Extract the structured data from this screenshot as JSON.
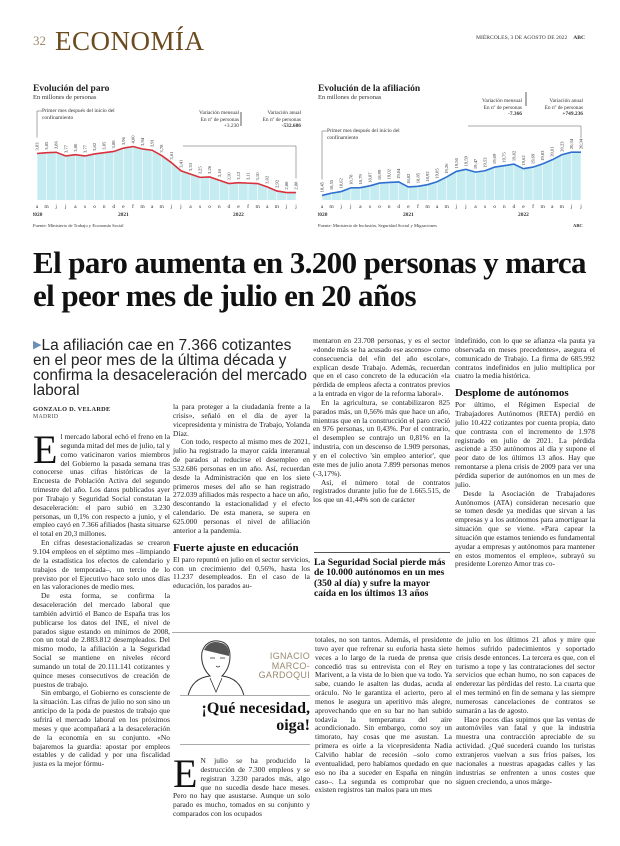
{
  "header": {
    "page_number": "32",
    "section": "ECONOMÍA",
    "date": "MIÉRCOLES, 3 DE AGOSTO DE 2022",
    "brand": "ABC"
  },
  "chart_data": [
    {
      "type": "area",
      "title": "Evolución del paro",
      "subtitle": "En millones de personas",
      "x_ticks": [
        "a",
        "m",
        "j",
        "j",
        "a",
        "s",
        "o",
        "n",
        "d",
        "e",
        "f",
        "m",
        "a",
        "m",
        "j",
        "j",
        "a",
        "s",
        "o",
        "n",
        "d",
        "e",
        "f",
        "m",
        "a",
        "m",
        "j",
        "j"
      ],
      "years": [
        "2020",
        "2021",
        "2022"
      ],
      "values": [
        3.83,
        3.85,
        3.86,
        3.77,
        3.8,
        3.77,
        3.82,
        3.85,
        3.88,
        3.96,
        4.0,
        3.94,
        3.91,
        3.78,
        3.61,
        3.41,
        3.33,
        3.25,
        3.26,
        3.18,
        3.1,
        3.12,
        3.11,
        3.1,
        3.02,
        2.92,
        2.88,
        2.88
      ],
      "labels": [
        "3,83",
        "3,85",
        "3,86",
        "3,77",
        "3,80",
        "3,77",
        "3,82",
        "3,85",
        "3,88",
        "3,96",
        "4,00",
        "3,94",
        "3,91",
        "3,78",
        "3,61",
        "3,41",
        "3,33",
        "3,25",
        "3,26",
        "3,18",
        "3,10",
        "3,12",
        "3,11",
        "3,10",
        "3,02",
        "2,92",
        "2,88",
        "2,88"
      ],
      "ylim": [
        2.7,
        4.45
      ],
      "line_color": "#d8323c",
      "fill_color": "#c4ecf1",
      "annotation": "Primer mes después del inicio del confinamiento",
      "var_monthly": {
        "label": "Variación mensual",
        "unit": "En nº de personas",
        "value": "+3.230"
      },
      "var_annual": {
        "label": "Variación anual",
        "unit": "En nº de personas",
        "value": "-532.686"
      },
      "source": "Fuente: Ministerio de Trabajo y Economía Social"
    },
    {
      "type": "area",
      "title": "Evolución de la afiliación",
      "subtitle": "En millones de personas",
      "x_ticks": [
        "a",
        "m",
        "j",
        "j",
        "a",
        "s",
        "o",
        "n",
        "d",
        "e",
        "f",
        "m",
        "a",
        "m",
        "j",
        "j",
        "a",
        "s",
        "o",
        "n",
        "d",
        "e",
        "f",
        "m",
        "a",
        "m",
        "j",
        "j"
      ],
      "years": [
        "2020",
        "2021",
        "2022"
      ],
      "values": [
        18.45,
        18.55,
        18.62,
        18.78,
        18.79,
        18.87,
        18.99,
        19.02,
        19.04,
        18.82,
        18.85,
        18.92,
        19.05,
        19.26,
        19.5,
        19.59,
        19.47,
        19.53,
        19.69,
        19.75,
        19.82,
        19.62,
        19.69,
        19.83,
        20.01,
        20.23,
        20.34,
        20.34
      ],
      "labels": [
        "18,45",
        "18,55",
        "18,62",
        "18,78",
        "18,79",
        "18,87",
        "18,99",
        "19,02",
        "19,04",
        "18,82",
        "18,85",
        "18,92",
        "19,05",
        "19,26",
        "19,50",
        "19,59",
        "19,47",
        "19,53",
        "19,69",
        "19,75",
        "19,82",
        "19,62",
        "19,69",
        "19,83",
        "20,01",
        "20,23",
        "20,34",
        "20,34"
      ],
      "ylim": [
        18.25,
        21.4
      ],
      "line_color": "#2f6fd0",
      "fill_color": "#c4ecf1",
      "annotation": "Primer mes después del inicio del confinamiento",
      "var_monthly": {
        "label": "Variación mensual",
        "unit": "En nº de personas",
        "value": "-7.366"
      },
      "var_annual": {
        "label": "Variación anual",
        "unit": "En nº de personas",
        "value": "+749.236"
      },
      "source": "Fuente: Ministerio de Inclusión, Seguridad Social y Migraciones",
      "credit": "ABC"
    }
  ],
  "article": {
    "headline": "El paro aumenta en 3.200 personas y marca el peor mes de julio en 20 años",
    "subhead": "La afiliación cae en 7.366 cotizantes en el peor mes de la última década y confirma la desaceleración del mercado laboral",
    "byline": "GONZALO D. VELARDE",
    "place": "MADRID",
    "dropcap": "E",
    "col1": [
      "l mercado laboral echó el freno en la segunda mitad del mes de julio, tal y como vaticinaron varios miembros del Gobierno la pasada semana tras conocerse unas cifras históricas de la Encuesta de Población Activa del segundo trimestre del año. Los datos publicados ayer por Trabajo y Seguridad Social constatan la desaceleración: el paro subió en 3.230 personas, un 0,1% con respecto a junio, y el empleo cayó en 7.366 afiliados (hasta situarse el total en 20,3 millones.",
      "En cifras desestacionalizadas se crearon 9.104 empleos en el séptimo mes –limpiando de la estadística los efectos de calendario y trabajos de temporada–, un tercio de lo previsto por el Ejecutivo hace solo unos días en las valoraciones de medio mes.",
      "De esta forma, se confirma la desaceleración del mercado laboral que también advirtió el Banco de España tras los publicarse los datos del INE, el nivel de parados sigue estando en mínimos de 2008, con un total de 2.883.812 desempleados. Del mismo modo, la afiliación a la Seguridad Social se mantiene en niveles récord sumando un total de 20.111.141 cotizantes y quince meses consecutivos de creación de puestos de trabajo.",
      "Sin embargo, el Gobierno es consciente de la situación. Las cifras de julio no son sino un anticipo de la poda de puestos de trabajo que sufrirá el mercado laboral en los próximos meses y que acompañará a la desaceleración de la economía en su conjunto. «No bajaremos la guardia: apostar por empleos estables y de calidad y por una fiscalidad justa es la mejor fórmu-"
    ],
    "col2": [
      "la para proteger a la ciudadanía frente a la crisis», señaló en el día de ayer la vicepresidenta y ministra de Trabajo, Yolanda Díaz.",
      "Con todo, respecto al mismo mes de 2021, julio ha registrado la mayor caída interanual de parados al reducirse el desempleo en 532.686 personas en un año. Así, recuerdan desde la Administración que en los siete primeros meses del año se han registrado 272.039 afiliados más respecto a hace un año, descontando la estacionalidad y el efecto calendario. De esta manera, se supera en 625.000 personas el nivel de afiliación anterior a la pandemia."
    ],
    "subhead2": "Fuerte ajuste en educación",
    "col2b": [
      "El paro repuntó en julio en el sector servicios, con un crecimiento del 0,56%, hasta los 11.237 desempleados. En el caso de la educación, los parados au-"
    ],
    "col3": [
      "mentaron en 23.708 personas, y es el sector «donde más se ha acusado ese ascenso» como consecuencia del «fin del año escolar», explican desde Trabajo. Además, recuerdan que en el caso concreto de la educación «la pérdida de empleos afecta a contratos previos a la entrada en vigor de la reforma laboral».",
      "En la agricultura, se contabilizaron 825 parados más, un 0,56% más que hace un año, mientras que en la construcción el paro creció en 976 personas, un 0,43%. Por el contrario, el desempleo se contrajo un 0,81% en la industria, con un descenso de 1.909 personas, y en el colectivo 'sin empleo anterior', que este mes de julio anota 7.899 personas menos (-3,17%).",
      "Así, el número total de contratos registrados durante julio fue de 1.665.515, de los que un 41,44% son de carácter"
    ],
    "highlight": "La Seguridad Social pierde más de 10.000 autónomos en un mes (350 al día) y sufre la mayor caída en los últimos 13 años",
    "col4": [
      "indefinido, con lo que se afianza «la pauta ya observada en meses precedentes», asegura el comunicado de Trabajo. La firma de 685.992 contratos indefinidos en julio multiplica por cuatro la media histórica."
    ],
    "subhead3": "Desplome de autónomos",
    "col4b": [
      "Por último, el Régimen Especial de Trabajadores Autónomos (RETA) perdió en julio 10.422 cotizantes por cuenta propia, dato que contrasta con el incremento de 1.978 registrado en julio de 2021. La pérdida asciende a 350 autónomos al día y supone el peor dato de los últimos 13 años. Hay que remontarse a plena crisis de 2009 para ver una pérdida superior de autónomos en un mes de julio.",
      "Desde la Asociación de Trabajadores Autónomos (ATA) consideran necesario que se tomen desde ya medidas que sirvan a las empresas y a los autónomos para amortiguar la situación que se viene. «Para capear la situación que estamos teniendo es fundamental ayudar a empresas y autónomos para mantener en estos momentos el empleo», subrayó su presidente Lorenzo Amor tras co-"
    ]
  },
  "opinion": {
    "author": "IGNACIO MARCO-GARDOQUI",
    "title": "¡Qué necesidad, oiga!",
    "dropcap": "E",
    "col2": [
      "N julio se ha producido la destrucción de 7.300 empleos y se registran 3.230 parados más, algo que no sucedía desde hace meses. Pero no hay que asustarse. Aunque un solo parado es mucho, tomados en su conjunto y comparados con los ocupados"
    ],
    "col3": [
      "totales, no son tantos. Además, el presidente tuvo ayer que refrenar su euforia hasta siete veces a lo largo de la rueda de prensa que concedió tras su entrevista con el Rey en Marivent, a la vista de lo bien que va todo. Ya sabe, cuando le asalten las dudas, acuda al oráculo. No le garantiza el acierto, pero al menos le asegura un aperitivo más alegre, aprovechando que en su bar no han subido todavía la temperatura del aire acondicionado. Sin embargo, como soy un timorato, hay cosas que me asustan. La primera es oírle a la vicepresidenta Nadia Calviño hablar de recesión –solo como eventualidad, pero habíamos quedado en que eso no iba a suceder en España en ningún caso–. La segunda es comprobar que no existen registros tan malos para un mes"
    ],
    "col4": [
      "de julio en los últimos 21 años y mire que hemos sufrido padecimientos y soportado crisis desde entonces. La tercera es que, con el turismo a tope y las contrataciones del sector servicios que echan humo, no son capaces de enderezar las pérdidas del resto. La cuarta que el mes terminó en fin de semana y las siempre numerosas cancelaciones de contratos se sumarán a las de agosto.",
      "Hace pocos días supimos que las ventas de automóviles van fatal y que la industria muestra una contracción apreciable de su actividad. ¿Qué sucederá cuando los turistas extranjeros vuelvan a sus fríos países, los nacionales a nuestras apagadas calles y las industrias se enfrenten a unos costes que siguen creciendo, a unos márge-"
    ]
  }
}
